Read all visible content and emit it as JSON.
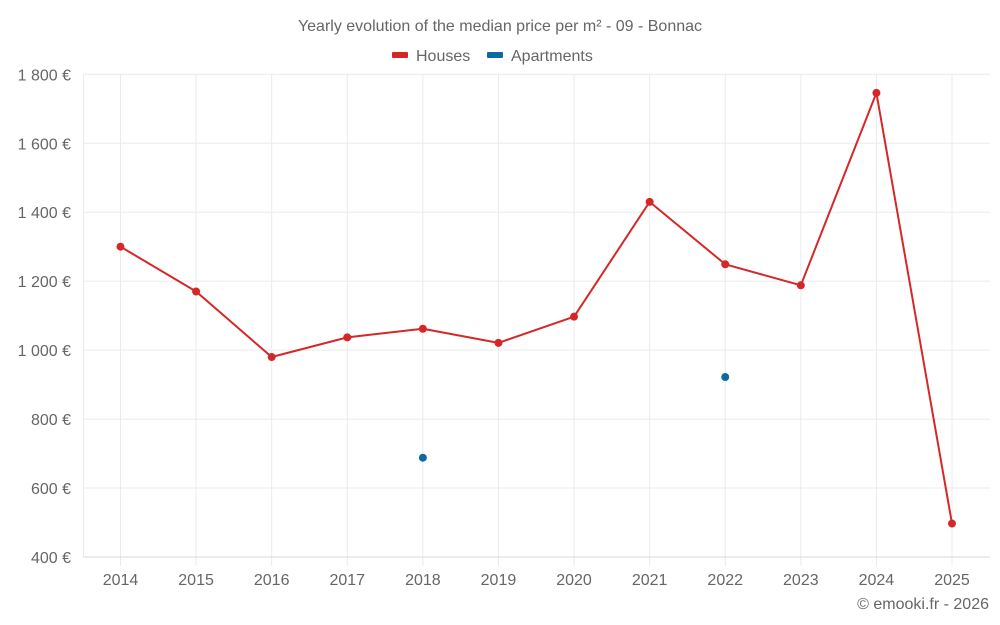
{
  "chart_data": {
    "type": "line",
    "title": "Yearly evolution of the median price per m² - 09 - Bonnac",
    "xlabel": "",
    "ylabel": "",
    "categories": [
      "2014",
      "2015",
      "2016",
      "2017",
      "2018",
      "2019",
      "2020",
      "2021",
      "2022",
      "2023",
      "2024",
      "2025"
    ],
    "series": [
      {
        "name": "Houses",
        "color": "#d62728",
        "values": [
          1300,
          1170,
          980,
          1037,
          1062,
          1021,
          1097,
          1430,
          1249,
          1188,
          1746,
          497
        ]
      },
      {
        "name": "Apartments",
        "color": "#0b6aa2",
        "values": [
          null,
          null,
          null,
          null,
          688,
          null,
          null,
          null,
          922,
          null,
          null,
          null
        ]
      }
    ],
    "ylim": [
      400,
      1800
    ],
    "yticks": [
      400,
      600,
      800,
      1000,
      1200,
      1400,
      1600,
      1800
    ],
    "ytick_labels": [
      "400 €",
      "600 €",
      "800 €",
      "1 000 €",
      "1 200 €",
      "1 400 €",
      "1 600 €",
      "1 800 €"
    ],
    "grid": true,
    "legend_position": "top"
  },
  "header": {
    "title": "Yearly evolution of the median price per m² - 09 - Bonnac"
  },
  "legend": {
    "items": [
      {
        "label": "Houses",
        "color": "#d62728"
      },
      {
        "label": "Apartments",
        "color": "#0b6aa2"
      }
    ]
  },
  "footer": {
    "credit": "© emooki.fr - 2026"
  }
}
